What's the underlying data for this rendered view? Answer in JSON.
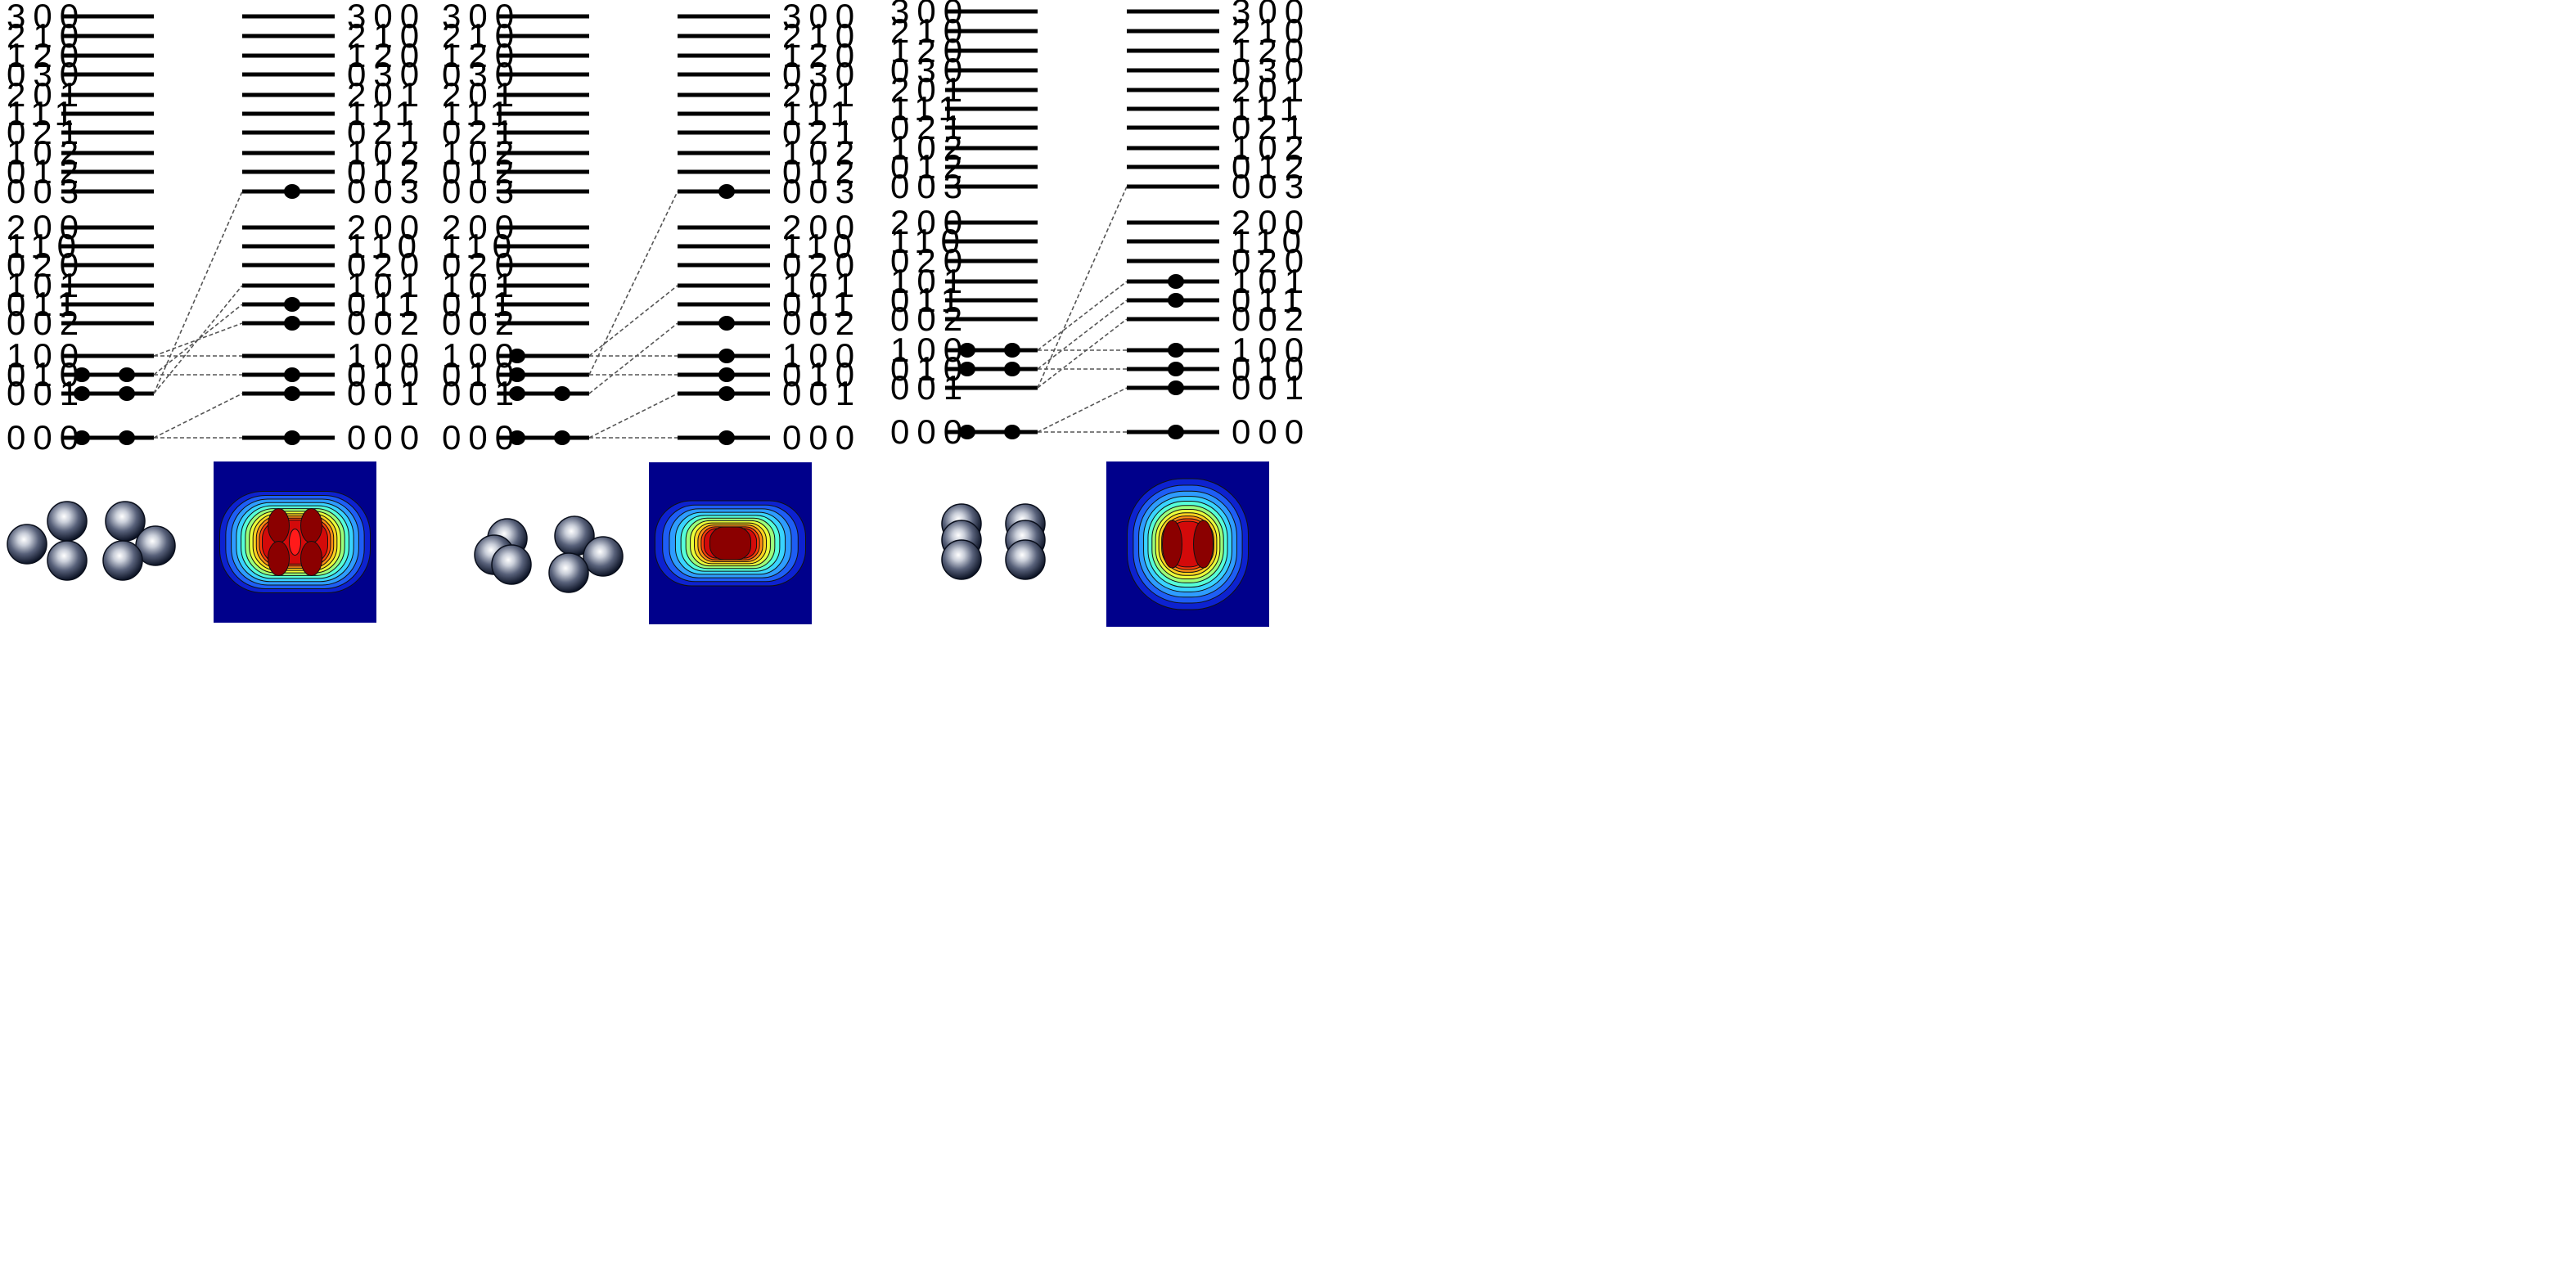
{
  "panels": [
    {
      "left_labels": [
        "300",
        "210",
        "120",
        "030",
        "201",
        "111",
        "021",
        "102",
        "012",
        "003",
        "200",
        "110",
        "020",
        "101",
        "011",
        "002",
        "100",
        "010",
        "001",
        "000"
      ],
      "right_labels": [
        "300",
        "210",
        "120",
        "030",
        "201",
        "111",
        "021",
        "102",
        "012",
        "003",
        "200",
        "110",
        "020",
        "101",
        "011",
        "002",
        "100",
        "010",
        "001",
        "000"
      ],
      "left_occupied": [
        {
          "level": "010",
          "count": 2
        },
        {
          "level": "001",
          "count": 2
        },
        {
          "level": "000",
          "count": 2
        }
      ],
      "right_occupied": [
        "003",
        "011",
        "002",
        "010",
        "001",
        "000"
      ],
      "correlations": [
        [
          "100",
          "100"
        ],
        [
          "100",
          "002"
        ],
        [
          "010",
          "010"
        ],
        [
          "010",
          "011"
        ],
        [
          "001",
          "101"
        ],
        [
          "001",
          "003"
        ],
        [
          "000",
          "001"
        ],
        [
          "000",
          "000"
        ]
      ],
      "cluster": "tetrahedral",
      "density": "four-lobe"
    },
    {
      "left_labels": [
        "300",
        "210",
        "120",
        "030",
        "201",
        "111",
        "021",
        "102",
        "012",
        "003",
        "200",
        "110",
        "020",
        "101",
        "011",
        "002",
        "100",
        "010",
        "001",
        "000"
      ],
      "right_labels": [
        "300",
        "210",
        "120",
        "030",
        "201",
        "111",
        "021",
        "102",
        "012",
        "003",
        "200",
        "110",
        "020",
        "101",
        "011",
        "002",
        "100",
        "010",
        "001",
        "000"
      ],
      "left_occupied": [
        {
          "level": "100",
          "count": 1
        },
        {
          "level": "010",
          "count": 1
        },
        {
          "level": "001",
          "count": 2
        },
        {
          "level": "000",
          "count": 2
        }
      ],
      "right_occupied": [
        "003",
        "002",
        "100",
        "010",
        "001",
        "000"
      ],
      "correlations": [
        [
          "100",
          "100"
        ],
        [
          "100",
          "101"
        ],
        [
          "010",
          "010"
        ],
        [
          "010",
          "003"
        ],
        [
          "001",
          "002"
        ],
        [
          "000",
          "001"
        ],
        [
          "000",
          "000"
        ]
      ],
      "cluster": "distorted",
      "density": "single-core"
    },
    {
      "left_labels": [
        "300",
        "210",
        "120",
        "030",
        "201",
        "111",
        "021",
        "102",
        "012",
        "003",
        "200",
        "110",
        "020",
        "101",
        "011",
        "002",
        "100",
        "010",
        "001",
        "000"
      ],
      "right_labels": [
        "300",
        "210",
        "120",
        "030",
        "201",
        "111",
        "021",
        "102",
        "012",
        "003",
        "200",
        "110",
        "020",
        "101",
        "011",
        "002",
        "100",
        "010",
        "001",
        "000"
      ],
      "left_occupied": [
        {
          "level": "100",
          "count": 2
        },
        {
          "level": "010",
          "count": 2
        },
        {
          "level": "000",
          "count": 2
        }
      ],
      "right_occupied": [
        "101",
        "011",
        "100",
        "010",
        "001",
        "000"
      ],
      "correlations": [
        [
          "100",
          "100"
        ],
        [
          "100",
          "101"
        ],
        [
          "010",
          "010"
        ],
        [
          "010",
          "011"
        ],
        [
          "001",
          "003"
        ],
        [
          "001",
          "002"
        ],
        [
          "000",
          "001"
        ],
        [
          "000",
          "000"
        ]
      ],
      "cluster": "planar",
      "density": "two-lobe"
    }
  ],
  "colors": {
    "level": "#000000",
    "electron": "#000000",
    "correlation": "#555555",
    "density_bg": "#00008b",
    "sphere_light": "#ffffff",
    "sphere_dark": "#0d1426"
  }
}
